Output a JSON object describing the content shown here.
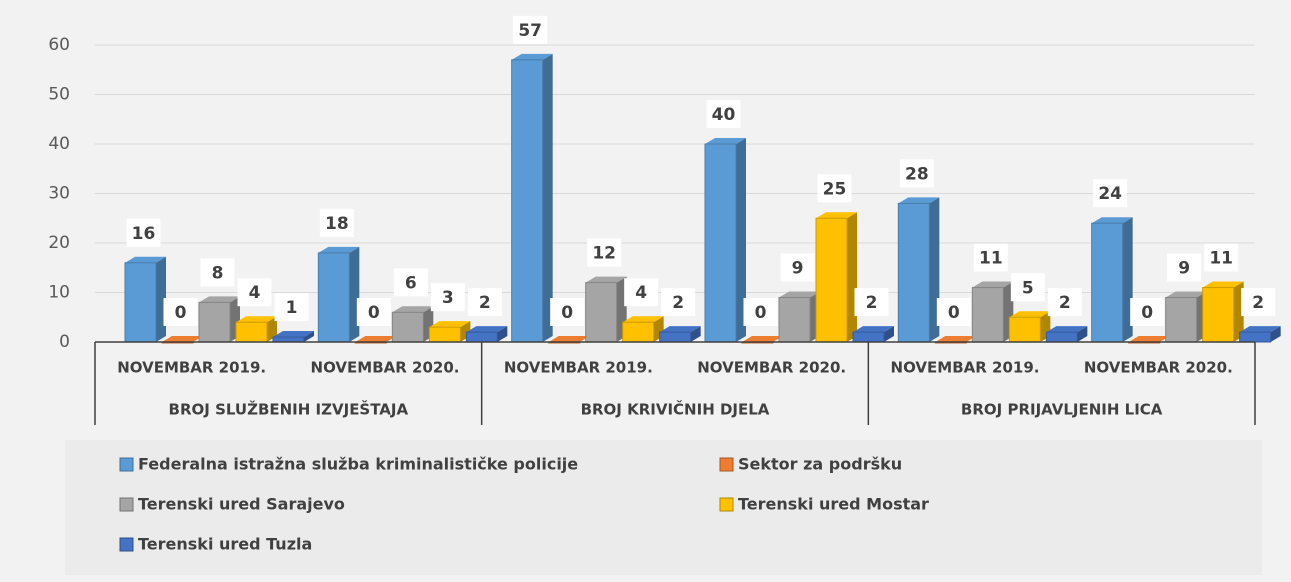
{
  "chart_data": {
    "type": "bar",
    "categories": [
      "NOVEMBAR 2019.",
      "NOVEMBAR 2020.",
      "NOVEMBAR 2019.",
      "NOVEMBAR 2020.",
      "NOVEMBAR 2019.",
      "NOVEMBAR 2020."
    ],
    "groups": [
      "BROJ SLUŽBENIH IZVJEŠTAJA",
      "BROJ KRIVIČNIH DJELA",
      "BROJ PRIJAVLJENIH LICA"
    ],
    "series": [
      {
        "name": "Federalna istražna služba kriminalističke policije",
        "color": "#5b9bd5",
        "values": [
          16,
          18,
          57,
          40,
          28,
          24
        ]
      },
      {
        "name": "Sektor za podršku",
        "color": "#ed7d31",
        "values": [
          0,
          0,
          0,
          0,
          0,
          0
        ]
      },
      {
        "name": "Terenski ured Sarajevo",
        "color": "#a5a5a5",
        "values": [
          8,
          6,
          12,
          9,
          11,
          9
        ]
      },
      {
        "name": "Terenski ured Mostar",
        "color": "#ffc000",
        "values": [
          4,
          3,
          4,
          25,
          5,
          11
        ]
      },
      {
        "name": "Terenski ured Tuzla",
        "color": "#4472c4",
        "values": [
          1,
          2,
          2,
          2,
          2,
          2
        ]
      }
    ],
    "ylim": [
      0,
      60
    ],
    "yticks": [
      0,
      10,
      20,
      30,
      40,
      50,
      60
    ],
    "grid": true
  }
}
